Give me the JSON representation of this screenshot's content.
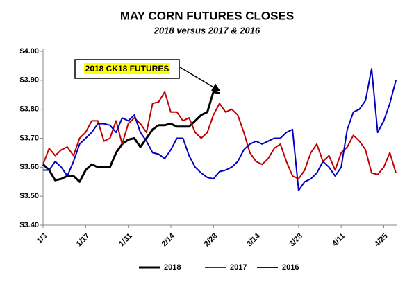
{
  "chart_data": {
    "type": "line",
    "title": "MAY CORN FUTURES CLOSES",
    "subtitle": "2018 versus 2017 & 2016",
    "annotation": "2018 CK18 FUTURES",
    "categories": [
      "1/3",
      null,
      null,
      null,
      null,
      null,
      null,
      "1/17",
      null,
      null,
      null,
      null,
      null,
      null,
      "1/31",
      null,
      null,
      null,
      null,
      null,
      null,
      "2/14",
      null,
      null,
      null,
      null,
      null,
      null,
      "2/28",
      null,
      null,
      null,
      null,
      null,
      null,
      "3/14",
      null,
      null,
      null,
      null,
      null,
      null,
      "3/28",
      null,
      null,
      null,
      null,
      null,
      null,
      "4/11",
      null,
      null,
      null,
      null,
      null,
      null,
      "4/25",
      null,
      null
    ],
    "ylim": [
      3.4,
      4.0
    ],
    "yticks": [
      {
        "value": 3.4,
        "label": "$3.40"
      },
      {
        "value": 3.5,
        "label": "$3.50"
      },
      {
        "value": 3.6,
        "label": "$3.60"
      },
      {
        "value": 3.7,
        "label": "$3.70"
      },
      {
        "value": 3.8,
        "label": "$3.80"
      },
      {
        "value": 3.9,
        "label": "$3.90"
      },
      {
        "value": 4.0,
        "label": "$4.00"
      }
    ],
    "grid": false,
    "legend": "bottom",
    "series": [
      {
        "name": "2018",
        "color": "#000000",
        "values": [
          3.61,
          3.59,
          3.555,
          3.56,
          3.57,
          3.57,
          3.55,
          3.59,
          3.61,
          3.6,
          3.6,
          3.6,
          3.65,
          3.68,
          3.695,
          3.7,
          3.67,
          3.7,
          3.73,
          3.745,
          3.745,
          3.75,
          3.74,
          3.74,
          3.74,
          3.76,
          3.78,
          3.79,
          3.86,
          3.855,
          null,
          null,
          null,
          null,
          null,
          null,
          null,
          null,
          null,
          null,
          null,
          null,
          null,
          null,
          null,
          null,
          null,
          null,
          null,
          null,
          null,
          null,
          null,
          null,
          null,
          null,
          null,
          null,
          null
        ]
      },
      {
        "name": "2017",
        "color": "#c00000",
        "values": [
          3.61,
          3.665,
          3.64,
          3.66,
          3.67,
          3.64,
          3.7,
          3.72,
          3.76,
          3.76,
          3.69,
          3.7,
          3.76,
          3.68,
          3.75,
          3.77,
          3.75,
          3.72,
          3.82,
          3.825,
          3.86,
          3.79,
          3.79,
          3.76,
          3.77,
          3.72,
          3.7,
          3.72,
          3.78,
          3.82,
          3.79,
          3.8,
          3.78,
          3.72,
          3.65,
          3.62,
          3.61,
          3.63,
          3.665,
          3.68,
          3.62,
          3.57,
          3.56,
          3.59,
          3.65,
          3.68,
          3.62,
          3.64,
          3.59,
          3.65,
          3.67,
          3.71,
          3.69,
          3.66,
          3.58,
          3.575,
          3.6,
          3.65,
          3.58
        ]
      },
      {
        "name": "2016",
        "color": "#0000c0",
        "values": [
          3.59,
          3.59,
          3.62,
          3.6,
          3.57,
          3.62,
          3.68,
          3.7,
          3.72,
          3.75,
          3.75,
          3.745,
          3.72,
          3.77,
          3.76,
          3.78,
          3.72,
          3.69,
          3.65,
          3.645,
          3.63,
          3.66,
          3.7,
          3.7,
          3.64,
          3.6,
          3.58,
          3.565,
          3.56,
          3.585,
          3.59,
          3.6,
          3.62,
          3.66,
          3.68,
          3.69,
          3.68,
          3.69,
          3.7,
          3.7,
          3.72,
          3.73,
          3.52,
          3.55,
          3.56,
          3.58,
          3.62,
          3.6,
          3.57,
          3.6,
          3.73,
          3.79,
          3.8,
          3.83,
          3.94,
          3.72,
          3.76,
          3.82,
          3.9
        ]
      }
    ]
  }
}
